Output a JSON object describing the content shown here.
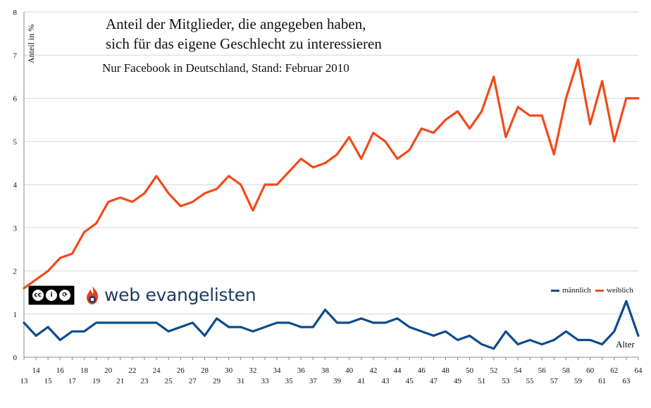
{
  "chart_data": {
    "type": "line",
    "title_line1": "Anteil der Mitglieder, die angegeben haben,",
    "title_line2": "sich für das eigene Geschlecht zu interessieren",
    "subtitle": "Nur Facebook in Deutschland, Stand: Februar 2010",
    "ylabel": "Anteil in %",
    "xlabel": "Alter",
    "ylim": [
      0,
      8
    ],
    "yticks": [
      "0",
      "1",
      "2",
      "3",
      "4",
      "5",
      "6",
      "7",
      "8"
    ],
    "grid": true,
    "legend_position": "bottom-right",
    "x": [
      13,
      14,
      15,
      16,
      17,
      18,
      19,
      20,
      21,
      22,
      23,
      24,
      25,
      26,
      27,
      28,
      29,
      30,
      31,
      32,
      33,
      34,
      35,
      36,
      37,
      38,
      39,
      40,
      41,
      42,
      43,
      44,
      45,
      46,
      47,
      48,
      49,
      50,
      51,
      52,
      53,
      54,
      55,
      56,
      57,
      58,
      59,
      60,
      61,
      62,
      63,
      64
    ],
    "series": [
      {
        "name": "männlich",
        "color": "#0d4c8c",
        "values": [
          0.8,
          0.5,
          0.7,
          0.4,
          0.6,
          0.6,
          0.8,
          0.8,
          0.8,
          0.8,
          0.8,
          0.8,
          0.6,
          0.7,
          0.8,
          0.5,
          0.9,
          0.7,
          0.7,
          0.6,
          0.7,
          0.8,
          0.8,
          0.7,
          0.7,
          1.1,
          0.8,
          0.8,
          0.9,
          0.8,
          0.8,
          0.9,
          0.7,
          0.6,
          0.5,
          0.6,
          0.4,
          0.5,
          0.3,
          0.2,
          0.6,
          0.3,
          0.4,
          0.3,
          0.4,
          0.6,
          0.4,
          0.4,
          0.3,
          0.6,
          1.3,
          0.5
        ]
      },
      {
        "name": "weiblich",
        "color": "#f04a1a",
        "values": [
          1.6,
          1.8,
          2.0,
          2.3,
          2.4,
          2.9,
          3.1,
          3.6,
          3.7,
          3.6,
          3.8,
          4.2,
          3.8,
          3.5,
          3.6,
          3.8,
          3.9,
          4.2,
          4.0,
          3.4,
          4.0,
          4.0,
          4.3,
          4.6,
          4.4,
          4.5,
          4.7,
          5.1,
          4.6,
          5.2,
          5.0,
          4.6,
          4.8,
          5.3,
          5.2,
          5.5,
          5.7,
          5.3,
          5.7,
          6.5,
          5.1,
          5.8,
          5.6,
          5.6,
          4.7,
          6.0,
          6.9,
          5.4,
          6.4,
          5.0,
          6.0,
          6.0
        ]
      }
    ]
  },
  "logos": {
    "cc_badge": {
      "icon": "creative-commons-by-sa-icon",
      "parts": [
        "cc",
        "i",
        "⟳"
      ],
      "caption": "BY   SA"
    },
    "brand": {
      "icon": "web-evangelisten-flame-icon",
      "text": "web evangelisten",
      "color": "#1f3a5f",
      "accent": "#e8401c"
    }
  },
  "colors": {
    "grid": "#d6d6d6",
    "axis": "#888888"
  }
}
